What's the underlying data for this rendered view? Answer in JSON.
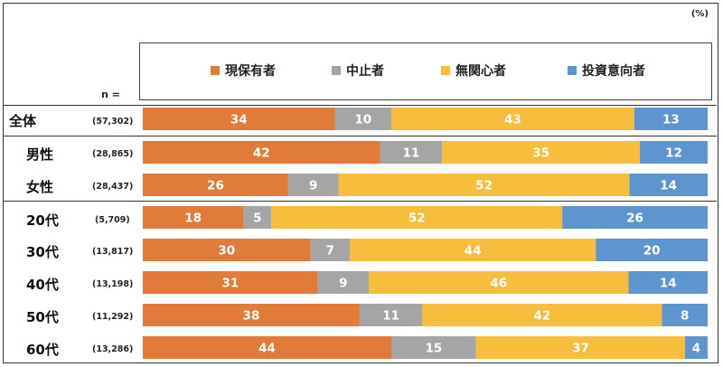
{
  "unit_label": "(%)",
  "n_label": "n =",
  "legend": [
    {
      "label": "現保有者",
      "color": "#E07B39"
    },
    {
      "label": "中止者",
      "color": "#A5A5A5"
    },
    {
      "label": "無関心者",
      "color": "#F6BE3C"
    },
    {
      "label": "投資意向者",
      "color": "#5F95CF"
    }
  ],
  "chart_data": {
    "type": "bar",
    "orientation": "horizontal-stacked-100",
    "xlim": [
      0,
      100
    ],
    "series": [
      {
        "name": "現保有者",
        "values": [
          34,
          42,
          26,
          18,
          30,
          31,
          38,
          44
        ]
      },
      {
        "name": "中止者",
        "values": [
          10,
          11,
          9,
          5,
          7,
          9,
          11,
          15
        ]
      },
      {
        "name": "無関心者",
        "values": [
          43,
          35,
          52,
          52,
          44,
          46,
          42,
          37
        ]
      },
      {
        "name": "投資意向者",
        "values": [
          13,
          12,
          14,
          26,
          20,
          14,
          8,
          4
        ]
      }
    ],
    "categories": [
      "全体",
      "男性",
      "女性",
      "20代",
      "30代",
      "40代",
      "50代",
      "60代"
    ],
    "n_values": [
      "(57,302)",
      "(28,865)",
      "(28,437)",
      "(5,709)",
      "(13,817)",
      "(13,198)",
      "(11,292)",
      "(13,286)"
    ]
  }
}
